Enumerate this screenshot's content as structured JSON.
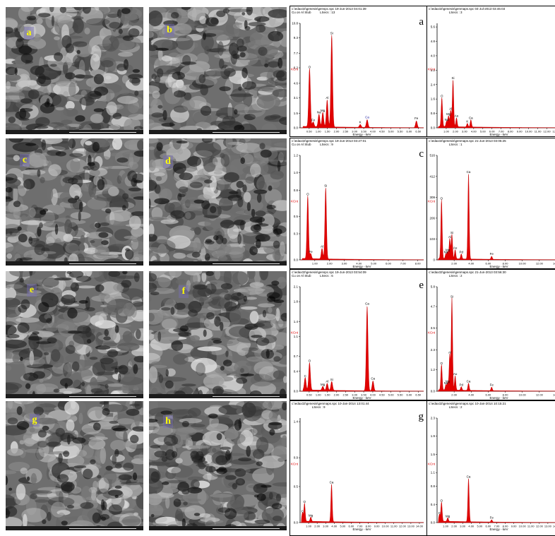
{
  "sem_panels": [
    {
      "id": "a",
      "label": "a"
    },
    {
      "id": "b",
      "label": "b"
    },
    {
      "id": "c",
      "label": "c"
    },
    {
      "id": "d",
      "label": "d"
    },
    {
      "id": "e",
      "label": "e"
    },
    {
      "id": "f",
      "label": "f"
    },
    {
      "id": "g",
      "label": "g"
    },
    {
      "id": "h",
      "label": "h"
    }
  ],
  "chart_data": [
    {
      "type": "line",
      "panel": "a",
      "header": "c:\\edax32\\genesis\\genspc.spc 19-Jun-2013 04:01:39",
      "subheader": "Cu on Al Stub          LSecs : 13",
      "ylabel": "KCnt",
      "xlabel": "Energy - keV",
      "yticks": [
        "0.0",
        "1.5",
        "3.1",
        "4.6",
        "6.2",
        "7.7",
        "9.3",
        "10.8"
      ],
      "ymax": 10.8,
      "xticks": [
        "0.50",
        "1.00",
        "1.50",
        "2.00",
        "2.50",
        "3.00",
        "3.50",
        "4.00",
        "4.50",
        "5.00",
        "5.50",
        "6.00",
        "6.50"
      ],
      "xmin": 0,
      "xmax": 6.8,
      "peaks": [
        {
          "el": "O",
          "x": 0.52,
          "y": 6.0
        },
        {
          "el": "Fe",
          "x": 0.72,
          "y": 0.5
        },
        {
          "el": "Na",
          "x": 1.04,
          "y": 1.3
        },
        {
          "el": "Mg",
          "x": 1.25,
          "y": 1.5
        },
        {
          "el": "Al",
          "x": 1.49,
          "y": 2.8
        },
        {
          "el": "Si",
          "x": 1.74,
          "y": 9.5
        },
        {
          "el": "K",
          "x": 3.31,
          "y": 0.3
        },
        {
          "el": "Ca",
          "x": 3.69,
          "y": 0.8
        },
        {
          "el": "Fe",
          "x": 6.4,
          "y": 0.7
        }
      ]
    },
    {
      "type": "line",
      "panel": "b",
      "header": "c:\\edax32\\genesis\\genmaps.spc 04-Jul-2013 03:46:03",
      "subheader": "                       LSecs : 3",
      "ylabel": "KCnt",
      "xlabel": "Energy - keV",
      "yticks": [
        "0.0",
        "0.8",
        "1.6",
        "2.4",
        "3.2",
        "4.0",
        "4.8",
        "5.6"
      ],
      "ymax": 5.8,
      "xticks": [
        "1.00",
        "2.00",
        "3.00",
        "4.00",
        "5.00",
        "6.00",
        "7.00",
        "8.00",
        "9.00",
        "10.00",
        "11.00",
        "12.00",
        "13.00"
      ],
      "xmin": 0,
      "xmax": 13.5,
      "peaks": [
        {
          "el": "O",
          "x": 0.52,
          "y": 1.6
        },
        {
          "el": "Na",
          "x": 1.04,
          "y": 0.3
        },
        {
          "el": "Mg",
          "x": 1.25,
          "y": 0.6
        },
        {
          "el": "Al",
          "x": 1.49,
          "y": 0.9
        },
        {
          "el": "Si",
          "x": 1.74,
          "y": 2.6
        },
        {
          "el": "Au",
          "x": 2.12,
          "y": 0.5
        },
        {
          "el": "K",
          "x": 3.31,
          "y": 0.2
        },
        {
          "el": "Ca",
          "x": 3.69,
          "y": 0.4
        }
      ]
    },
    {
      "type": "line",
      "panel": "c",
      "header": "c:\\edax32\\genesis\\genspc.spc 19-Jun-2013 03:27:01",
      "subheader": "Cu on Al Stub          LSecs : 9",
      "ylabel": "KCnt",
      "xlabel": "Energy - keV",
      "yticks": [
        "0.0",
        "0.3",
        "0.5",
        "0.8",
        "1.0",
        "1.2"
      ],
      "ymax": 1.2,
      "xticks": [
        "1.00",
        "2.00",
        "3.00",
        "4.00",
        "5.00",
        "6.00",
        "7.00",
        "8.00"
      ],
      "xmin": 0,
      "xmax": 8.4,
      "peaks": [
        {
          "el": "O",
          "x": 0.52,
          "y": 0.72
        },
        {
          "el": "Fe",
          "x": 0.72,
          "y": 0.06
        },
        {
          "el": "Al",
          "x": 1.49,
          "y": 0.12
        },
        {
          "el": "Si",
          "x": 1.74,
          "y": 0.82
        }
      ]
    },
    {
      "type": "line",
      "panel": "d",
      "header": "c:\\edax32\\genesis\\genmaps.spc 21-Jun-2013 03:05:25",
      "subheader": "                       LSecs : 1",
      "ylabel": "KCnt",
      "xlabel": "Energy - keV",
      "yticks": [
        "0",
        "103",
        "206",
        "309",
        "412",
        "516"
      ],
      "ymax": 516,
      "xticks": [
        "2.00",
        "4.00",
        "6.00",
        "8.00",
        "10.00",
        "12.00",
        "14.00"
      ],
      "xmin": 0,
      "xmax": 14.5,
      "peaks": [
        {
          "el": "O",
          "x": 0.52,
          "y": 290
        },
        {
          "el": "Na",
          "x": 1.04,
          "y": 25
        },
        {
          "el": "Mg",
          "x": 1.25,
          "y": 35
        },
        {
          "el": "Al",
          "x": 1.49,
          "y": 100
        },
        {
          "el": "Si",
          "x": 1.74,
          "y": 120
        },
        {
          "el": "Au",
          "x": 2.12,
          "y": 45
        },
        {
          "el": "Pd",
          "x": 2.84,
          "y": 25
        },
        {
          "el": "Ca",
          "x": 3.69,
          "y": 420
        },
        {
          "el": "Fe",
          "x": 6.4,
          "y": 15
        }
      ]
    },
    {
      "type": "line",
      "panel": "e",
      "header": "c:\\edax32\\genesis\\genspc.spc 19-Jun-2013 03:54:09",
      "subheader": "Cu on Al Stub          LSecs : 6",
      "ylabel": "KCnt",
      "xlabel": "Energy - keV",
      "yticks": [
        "0.0",
        "0.4",
        "0.7",
        "1.1",
        "1.4",
        "1.8",
        "2.1"
      ],
      "ymax": 2.1,
      "xticks": [
        "0.50",
        "1.00",
        "1.50",
        "2.00",
        "2.50",
        "3.00",
        "3.50",
        "4.00",
        "4.50",
        "5.00",
        "5.50",
        "6.00",
        "6.50"
      ],
      "xmin": 0,
      "xmax": 6.8,
      "peaks": [
        {
          "el": "C",
          "x": 0.28,
          "y": 0.25
        },
        {
          "el": "O",
          "x": 0.52,
          "y": 0.55
        },
        {
          "el": "Mg",
          "x": 1.25,
          "y": 0.08
        },
        {
          "el": "Al",
          "x": 1.49,
          "y": 0.14
        },
        {
          "el": "Si",
          "x": 1.74,
          "y": 0.18
        },
        {
          "el": "Ca",
          "x": 3.69,
          "y": 1.7
        },
        {
          "el": "Ca",
          "x": 4.01,
          "y": 0.2
        }
      ]
    },
    {
      "type": "line",
      "panel": "f",
      "header": "c:\\edax32\\genesis\\genmaps.spc 21-Jun-2013 03:56:30",
      "subheader": "                       LSecs : 2",
      "ylabel": "KCnt",
      "xlabel": "Energy - keV",
      "yticks": [
        "0.0",
        "1.2",
        "2.3",
        "3.5",
        "4.7",
        "5.8"
      ],
      "ymax": 5.8,
      "xticks": [
        "2.00",
        "4.00",
        "6.00",
        "8.00",
        "10.00",
        "12.00",
        "14.00"
      ],
      "xmin": 0,
      "xmax": 14.5,
      "peaks": [
        {
          "el": "O",
          "x": 0.52,
          "y": 1.4
        },
        {
          "el": "Na",
          "x": 1.04,
          "y": 0.3
        },
        {
          "el": "Mg",
          "x": 1.25,
          "y": 0.4
        },
        {
          "el": "Al",
          "x": 1.49,
          "y": 2.0
        },
        {
          "el": "Si",
          "x": 1.74,
          "y": 5.1
        },
        {
          "el": "Au",
          "x": 2.12,
          "y": 0.8
        },
        {
          "el": "Pd",
          "x": 2.84,
          "y": 0.2
        },
        {
          "el": "Ca",
          "x": 3.69,
          "y": 0.4
        },
        {
          "el": "Fe",
          "x": 6.4,
          "y": 0.2
        }
      ]
    },
    {
      "type": "line",
      "panel": "g",
      "header": "c:\\edax32\\genesis\\genmaps.spc 10-Jan-2014 13:01:44",
      "subheader": "                       LSecs : 9",
      "ylabel": "KCnt",
      "xlabel": "Energy - keV",
      "yticks": [
        "0.0",
        "0.5",
        "0.9",
        "1.4"
      ],
      "ymax": 1.45,
      "xticks": [
        "1.00",
        "2.00",
        "3.00",
        "4.00",
        "5.00",
        "6.00",
        "7.00",
        "8.00",
        "9.00",
        "10.00",
        "11.00",
        "12.00",
        "13.00",
        "14.00"
      ],
      "xmin": 0,
      "xmax": 14.5,
      "peaks": [
        {
          "el": "C",
          "x": 0.28,
          "y": 0.12
        },
        {
          "el": "O",
          "x": 0.52,
          "y": 0.25
        },
        {
          "el": "Mg",
          "x": 1.25,
          "y": 0.06
        },
        {
          "el": "Ca",
          "x": 3.69,
          "y": 0.52
        }
      ]
    },
    {
      "type": "line",
      "panel": "h",
      "header": "c:\\edax32\\genesis\\genmaps.spc 10-Jan-2014 10:15:21",
      "subheader": "                       LSecs : 2",
      "ylabel": "KCnt",
      "xlabel": "Energy - keV",
      "yticks": [
        "0.0",
        "0.4",
        "0.8",
        "1.1",
        "1.5",
        "1.9",
        "2.3"
      ],
      "ymax": 2.3,
      "xticks": [
        "1.00",
        "2.00",
        "3.00",
        "4.00",
        "5.00",
        "6.00",
        "7.00",
        "8.00",
        "9.00",
        "10.00",
        "11.00",
        "12.00",
        "13.00",
        "14.00"
      ],
      "xmin": 0,
      "xmax": 14.5,
      "peaks": [
        {
          "el": "C",
          "x": 0.28,
          "y": 0.15
        },
        {
          "el": "O",
          "x": 0.52,
          "y": 0.42
        },
        {
          "el": "Mg",
          "x": 1.25,
          "y": 0.08
        },
        {
          "el": "Ca",
          "x": 3.69,
          "y": 0.95
        },
        {
          "el": "Fe",
          "x": 6.4,
          "y": 0.05
        }
      ]
    }
  ]
}
